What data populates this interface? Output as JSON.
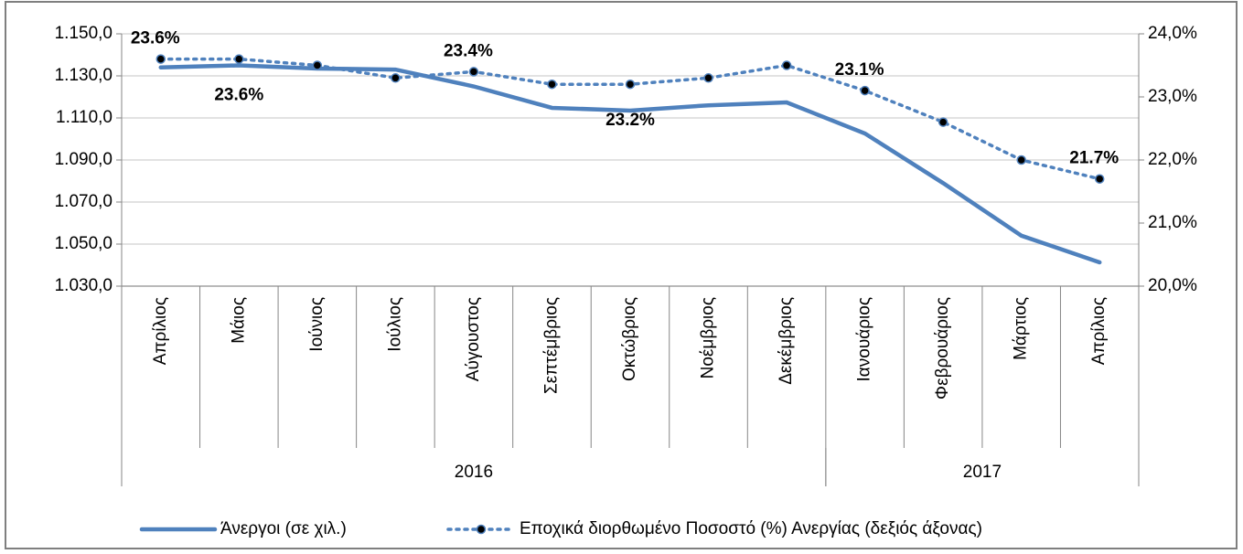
{
  "chart_data": {
    "type": "line",
    "categories": [
      "Απρίλιος",
      "Μάιος",
      "Ιούνιος",
      "Ιούλιος",
      "Αύγουστος",
      "Σεπτέμβριος",
      "Οκτώβριος",
      "Νοέμβριος",
      "Δεκέμβριος",
      "Ιανουάριος",
      "Φεβρουάριος",
      "Μάρτιος",
      "Απρίλιος"
    ],
    "category_groups": [
      {
        "label": "2016",
        "span": 9
      },
      {
        "label": "2017",
        "span": 4
      }
    ],
    "series": [
      {
        "name": "Άνεργοι (σε χιλ.)",
        "color": "#4f81bd",
        "style": "solid",
        "axis": "y",
        "values": [
          1134,
          1135,
          1133.5,
          1133,
          1125,
          1114.8,
          1113.5,
          1116,
          1117.4,
          1102.6,
          1079,
          1054,
          1041.3
        ]
      },
      {
        "name": "Εποχικά διορθωμένο Ποσοστό (%) Ανεργίας (δεξιός άξονας)",
        "color": "#4f81bd",
        "style": "dotted",
        "axis": "y2",
        "marker_color": "#000000",
        "values": [
          23.6,
          23.6,
          23.5,
          23.3,
          23.4,
          23.2,
          23.2,
          23.3,
          23.5,
          23.1,
          22.6,
          22.0,
          21.7
        ],
        "value_labels": [
          "23.6%",
          "23.6%",
          null,
          null,
          "23.4%",
          null,
          "23.2%",
          null,
          null,
          "23.1%",
          null,
          null,
          "21.7%"
        ]
      }
    ],
    "ylim": [
      1030,
      1150
    ],
    "yticks": [
      {
        "value": 1030,
        "label": "1.030,0"
      },
      {
        "value": 1050,
        "label": "1.050,0"
      },
      {
        "value": 1070,
        "label": "1.070,0"
      },
      {
        "value": 1090,
        "label": "1.090,0"
      },
      {
        "value": 1110,
        "label": "1.110,0"
      },
      {
        "value": 1130,
        "label": "1.130,0"
      },
      {
        "value": 1150,
        "label": "1.150,0"
      }
    ],
    "y2lim": [
      20,
      24
    ],
    "y2ticks": [
      {
        "value": 20,
        "label": "20,0%"
      },
      {
        "value": 21,
        "label": "21,0%"
      },
      {
        "value": 22,
        "label": "22,0%"
      },
      {
        "value": 23,
        "label": "23,0%"
      },
      {
        "value": 24,
        "label": "24,0%"
      }
    ],
    "grid": true,
    "legend": "bottom"
  }
}
